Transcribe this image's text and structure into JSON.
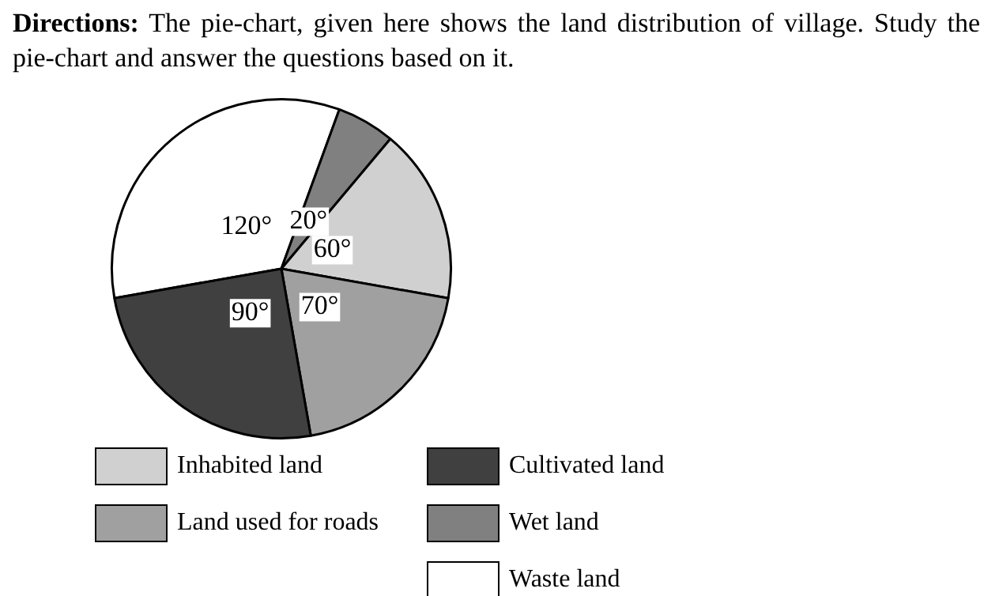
{
  "chart_data": {
    "type": "pie",
    "title": "Directions: The pie-chart, given here shows the land distribution of village. Study the pie-chart and answer the questions based on it.",
    "categories": [
      "Waste land",
      "Wet land",
      "Inhabited land",
      "Land used for roads",
      "Cultivated land"
    ],
    "values": [
      120,
      20,
      60,
      70,
      90
    ],
    "colors": [
      "#ffffff",
      "#808080",
      "#d0d0d0",
      "#a0a0a0",
      "#404040"
    ],
    "value_labels": [
      "120°",
      "20°",
      "60°",
      "70°",
      "90°"
    ],
    "legend": "bottom"
  }
}
